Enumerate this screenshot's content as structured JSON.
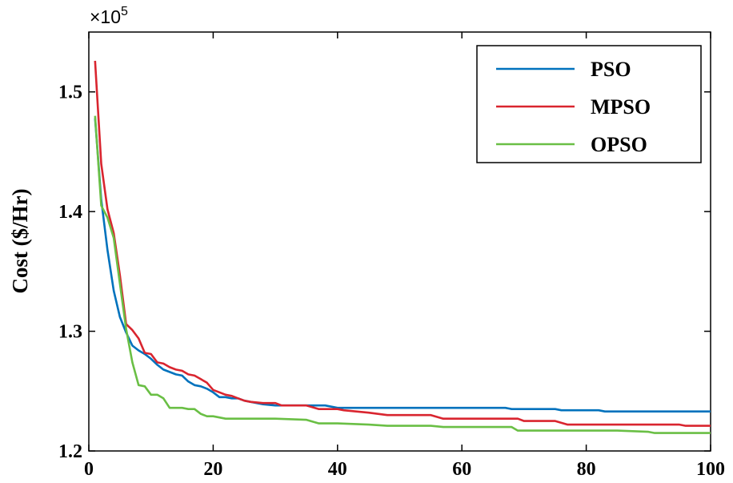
{
  "chart_data": {
    "type": "line",
    "title": "",
    "xlabel": "",
    "ylabel": "Cost ($/Hr)",
    "y_multiplier_label": "×10",
    "y_multiplier_exponent": "5",
    "xlim": [
      0,
      100
    ],
    "ylim": [
      1.2,
      1.55
    ],
    "x_ticks": [
      0,
      20,
      40,
      60,
      80,
      100
    ],
    "y_ticks": [
      1.2,
      1.3,
      1.4,
      1.5
    ],
    "y_tick_labels": [
      "1.2",
      "1.3",
      "1.4",
      "1.5"
    ],
    "grid": false,
    "legend_position": "top-right",
    "series": [
      {
        "name": "PSO",
        "color": "#0072bd",
        "x": [
          1,
          2,
          3,
          4,
          5,
          6,
          7,
          8,
          9,
          10,
          11,
          12,
          13,
          14,
          15,
          16,
          17,
          18,
          19,
          20,
          21,
          22,
          23,
          24,
          25,
          26,
          28,
          30,
          35,
          38,
          40,
          45,
          50,
          55,
          60,
          65,
          67,
          68,
          70,
          75,
          76,
          80,
          82,
          83,
          85,
          90,
          95,
          100
        ],
        "y": [
          1.478,
          1.41,
          1.368,
          1.334,
          1.312,
          1.299,
          1.288,
          1.284,
          1.281,
          1.277,
          1.272,
          1.268,
          1.266,
          1.264,
          1.263,
          1.258,
          1.255,
          1.254,
          1.252,
          1.249,
          1.245,
          1.245,
          1.244,
          1.244,
          1.242,
          1.241,
          1.239,
          1.238,
          1.238,
          1.238,
          1.236,
          1.236,
          1.236,
          1.236,
          1.236,
          1.236,
          1.236,
          1.235,
          1.235,
          1.235,
          1.234,
          1.234,
          1.234,
          1.233,
          1.233,
          1.233,
          1.233,
          1.233
        ]
      },
      {
        "name": "MPSO",
        "color": "#d9252f",
        "x": [
          1,
          2,
          3,
          4,
          5,
          6,
          7,
          8,
          9,
          10,
          11,
          12,
          13,
          14,
          15,
          16,
          17,
          18,
          19,
          20,
          21,
          22,
          23,
          24,
          25,
          26,
          28,
          30,
          31,
          35,
          37,
          40,
          41,
          43,
          45,
          48,
          50,
          55,
          57,
          60,
          65,
          69,
          70,
          75,
          77,
          80,
          85,
          90,
          95,
          96,
          100
        ],
        "y": [
          1.526,
          1.44,
          1.402,
          1.382,
          1.347,
          1.306,
          1.301,
          1.294,
          1.282,
          1.281,
          1.274,
          1.273,
          1.27,
          1.268,
          1.267,
          1.264,
          1.263,
          1.26,
          1.257,
          1.251,
          1.249,
          1.247,
          1.246,
          1.244,
          1.242,
          1.241,
          1.24,
          1.24,
          1.238,
          1.238,
          1.235,
          1.235,
          1.234,
          1.233,
          1.232,
          1.23,
          1.23,
          1.23,
          1.227,
          1.227,
          1.227,
          1.227,
          1.225,
          1.225,
          1.222,
          1.222,
          1.222,
          1.222,
          1.222,
          1.221,
          1.221
        ]
      },
      {
        "name": "OPSO",
        "color": "#6abf45",
        "x": [
          1,
          2,
          3,
          4,
          5,
          6,
          7,
          8,
          9,
          10,
          11,
          12,
          13,
          14,
          15,
          16,
          17,
          18,
          19,
          20,
          21,
          22,
          25,
          30,
          35,
          37,
          40,
          45,
          48,
          50,
          55,
          57,
          60,
          65,
          68,
          69,
          70,
          75,
          80,
          85,
          90,
          91,
          95,
          100
        ],
        "y": [
          1.48,
          1.405,
          1.395,
          1.378,
          1.34,
          1.302,
          1.274,
          1.255,
          1.254,
          1.247,
          1.247,
          1.244,
          1.236,
          1.236,
          1.236,
          1.235,
          1.235,
          1.231,
          1.229,
          1.229,
          1.228,
          1.227,
          1.227,
          1.227,
          1.226,
          1.223,
          1.223,
          1.222,
          1.221,
          1.221,
          1.221,
          1.22,
          1.22,
          1.22,
          1.22,
          1.217,
          1.217,
          1.217,
          1.217,
          1.217,
          1.216,
          1.215,
          1.215,
          1.215
        ]
      }
    ]
  }
}
